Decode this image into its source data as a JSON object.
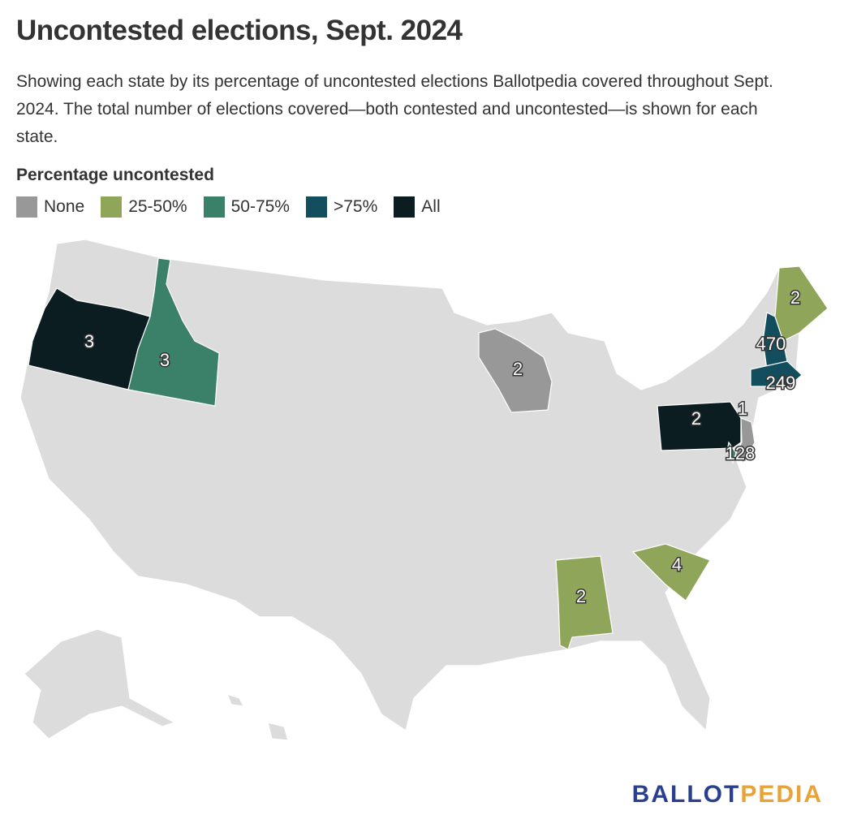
{
  "header": {
    "title": "Uncontested elections, Sept. 2024",
    "subtitle": "Showing each state by its percentage of uncontested elections Ballotpedia covered throughout Sept. 2024. The total number of elections covered—both contested and uncontested—is shown for each state."
  },
  "legend": {
    "title": "Percentage uncontested",
    "items": [
      {
        "label": "None",
        "color": "#989898"
      },
      {
        "label": "25-50%",
        "color": "#8fa65a"
      },
      {
        "label": "50-75%",
        "color": "#3b8068"
      },
      {
        "label": ">75%",
        "color": "#134e5e"
      },
      {
        "label": "All",
        "color": "#0b1d21"
      }
    ]
  },
  "map": {
    "labels": [
      {
        "text": 3,
        "color": "#0b1d21"
      },
      {
        "text": 3,
        "color": "#3b8068"
      },
      {
        "text": 2,
        "color": "#989898"
      },
      {
        "text": 2,
        "color": "#0b1d21"
      },
      {
        "text": 1,
        "color": "#989898"
      },
      {
        "text": 128,
        "color": "#3b8068"
      },
      {
        "text": 2,
        "color": "#8fa65a"
      },
      {
        "text": 470,
        "color": "#134e5e"
      },
      {
        "text": 249,
        "color": "#134e5e"
      },
      {
        "text": 2,
        "color": "#8fa65a"
      },
      {
        "text": 4,
        "color": "#8fa65a"
      }
    ]
  },
  "logo": {
    "first": "BALLOT",
    "second": "PEDIA"
  }
}
